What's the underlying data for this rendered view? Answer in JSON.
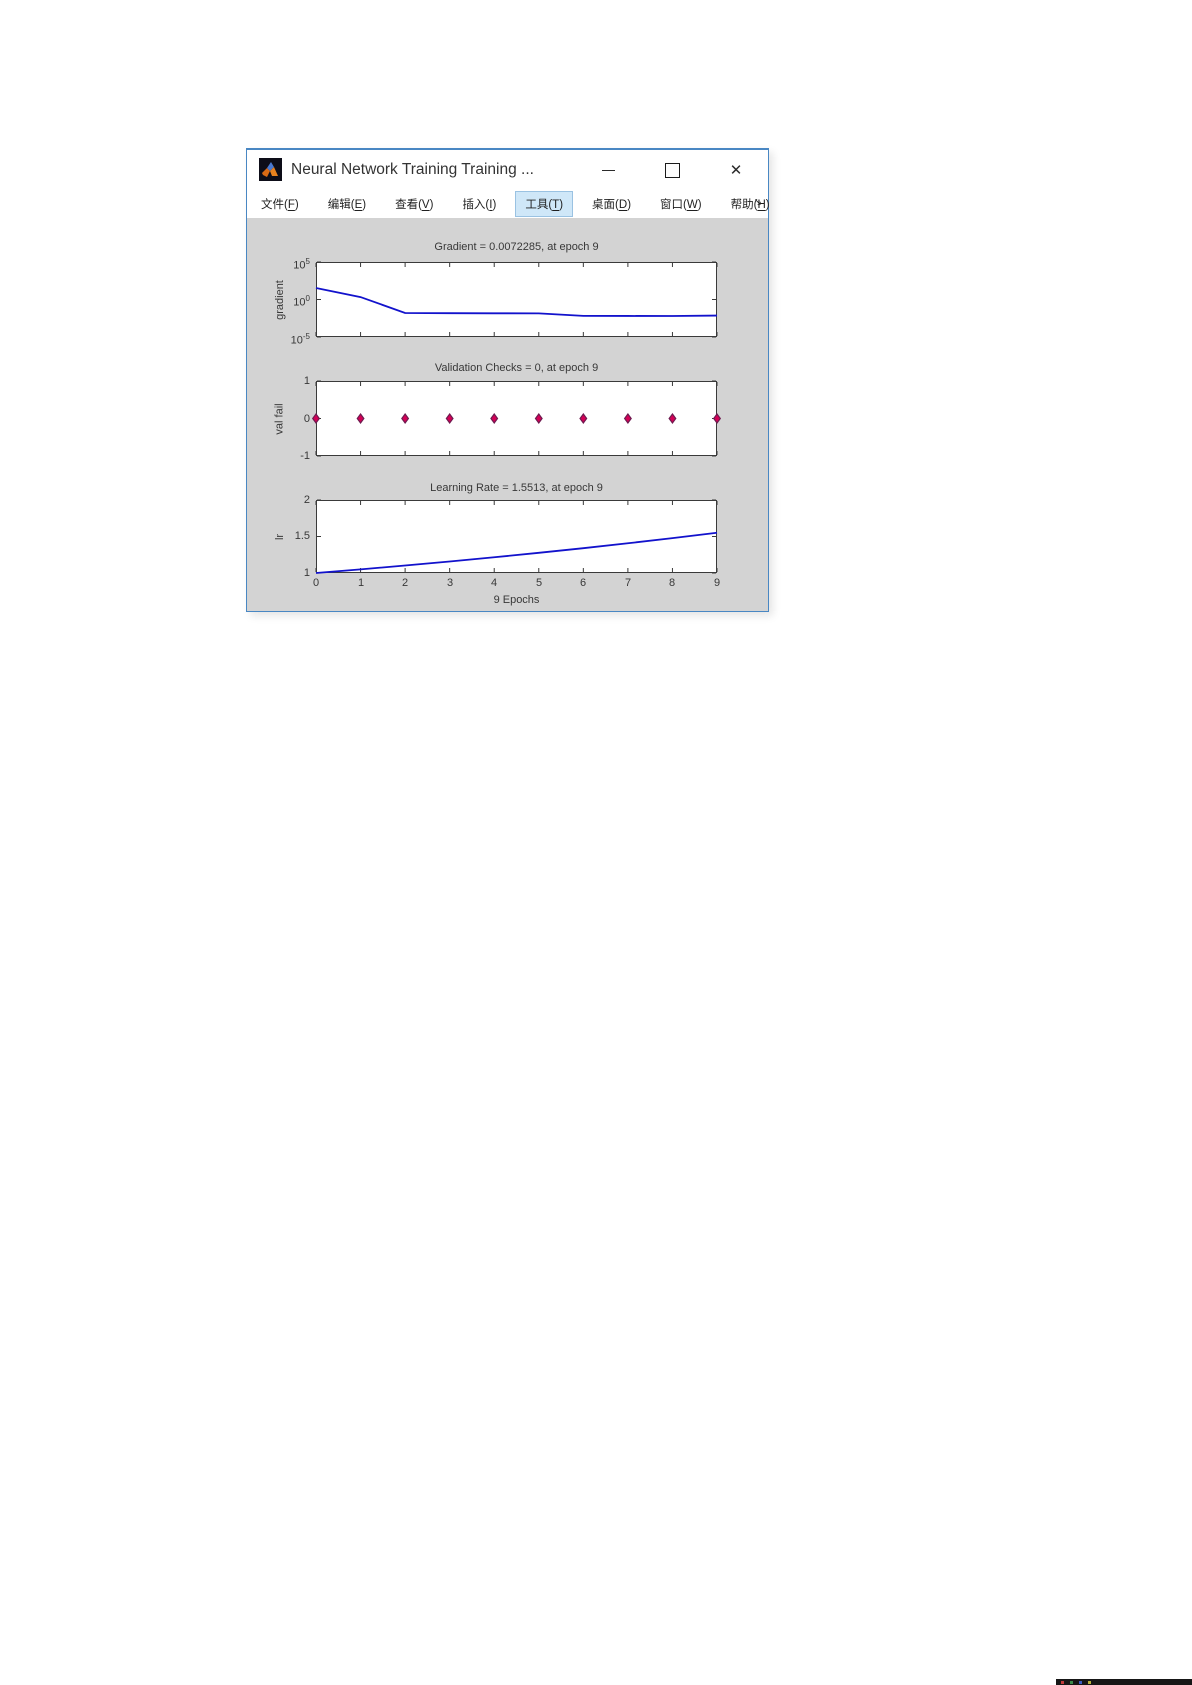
{
  "window": {
    "title": "Neural Network Training Training ...",
    "icon": "matlab-logo-icon",
    "controls": {
      "minimize_label": "minimize",
      "maximize_label": "maximize",
      "close_icon": "✕"
    }
  },
  "menu": {
    "items": [
      {
        "prefix": "文件(",
        "key": "F",
        "suffix": ")"
      },
      {
        "prefix": "编辑(",
        "key": "E",
        "suffix": ")"
      },
      {
        "prefix": "查看(",
        "key": "V",
        "suffix": ")"
      },
      {
        "prefix": "插入(",
        "key": "I",
        "suffix": ")"
      },
      {
        "prefix": "工具(",
        "key": "T",
        "suffix": ")"
      },
      {
        "prefix": "桌面(",
        "key": "D",
        "suffix": ")"
      },
      {
        "prefix": "窗口(",
        "key": "W",
        "suffix": ")"
      },
      {
        "prefix": "帮助(",
        "key": "H",
        "suffix": ")"
      }
    ],
    "overflow_icon": "↘"
  },
  "chart_data": {
    "x_axis": {
      "xlim": [
        0,
        9
      ],
      "tick_values": [
        0,
        1,
        2,
        3,
        4,
        5,
        6,
        7,
        8,
        9
      ],
      "ticks": [
        "0",
        "1",
        "2",
        "3",
        "4",
        "5",
        "6",
        "7",
        "8",
        "9"
      ],
      "label": "9 Epochs"
    },
    "plots": [
      {
        "type": "line",
        "title": "Gradient = 0.0072285, at epoch 9",
        "ylabel": "gradient",
        "yscale": "log10",
        "ylim": [
          -5,
          5
        ],
        "yticks": [
          {
            "value": 5,
            "base": "10",
            "exp": "5"
          },
          {
            "value": 0,
            "base": "10",
            "exp": "0"
          },
          {
            "value": -5,
            "base": "10",
            "exp": "-5"
          }
        ],
        "x": [
          0,
          1,
          2,
          3,
          4,
          5,
          6,
          7,
          8,
          9
        ],
        "values": [
          34,
          2.1,
          0.016,
          0.015,
          0.0145,
          0.014,
          0.0065,
          0.0064,
          0.0063,
          0.0072285
        ],
        "line_color": "#1212cc",
        "final_value": 0.0072285,
        "final_epoch": 9
      },
      {
        "type": "scatter",
        "title": "Validation Checks = 0, at epoch 9",
        "ylabel": "val fail",
        "yscale": "linear",
        "ylim": [
          -1,
          1
        ],
        "yticks": [
          {
            "value": 1,
            "label": "1"
          },
          {
            "value": 0,
            "label": "0"
          },
          {
            "value": -1,
            "label": "-1"
          }
        ],
        "x": [
          0,
          1,
          2,
          3,
          4,
          5,
          6,
          7,
          8,
          9
        ],
        "values": [
          0,
          0,
          0,
          0,
          0,
          0,
          0,
          0,
          0,
          0
        ],
        "marker": "diamond",
        "marker_fill": "#d40055",
        "marker_stroke": "#6e1b50",
        "final_value": 0,
        "final_epoch": 9
      },
      {
        "type": "line",
        "title": "Learning Rate = 1.5513, at epoch 9",
        "ylabel": "lr",
        "yscale": "linear",
        "ylim": [
          1,
          2
        ],
        "yticks": [
          {
            "value": 2,
            "label": "2"
          },
          {
            "value": 1.5,
            "label": "1.5"
          },
          {
            "value": 1,
            "label": "1"
          }
        ],
        "x": [
          0,
          1,
          2,
          3,
          4,
          5,
          6,
          7,
          8,
          9
        ],
        "values": [
          1,
          1.05,
          1.1025,
          1.1576,
          1.2155,
          1.2763,
          1.3401,
          1.4071,
          1.4775,
          1.5513
        ],
        "line_color": "#1212cc",
        "final_value": 1.5513,
        "final_epoch": 9
      }
    ]
  }
}
